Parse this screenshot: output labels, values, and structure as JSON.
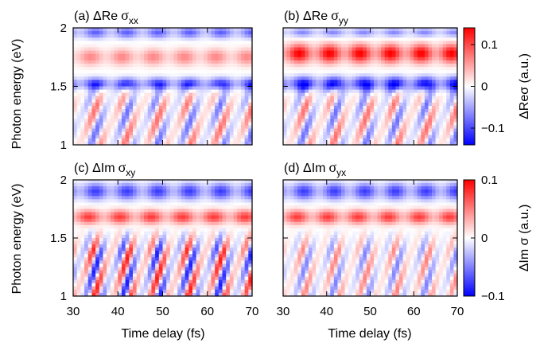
{
  "chart_data": {
    "type": "heatmap",
    "xlabel": "Time delay (fs)",
    "ylabel": "Photon energy (eV)",
    "xlim": [
      30,
      70
    ],
    "ylim": [
      1,
      2
    ],
    "x_ticks": [
      "30",
      "40",
      "50",
      "60",
      "70"
    ],
    "y_ticks": [
      "1",
      "1.5",
      "2"
    ],
    "colormap": [
      "#0000ff",
      "#ffffff",
      "#ff0000"
    ],
    "colorbars": [
      {
        "label": "ΔReσ (a.u.)",
        "ticks": [
          "0.1",
          "0",
          "−0.1"
        ],
        "tick_values": [
          0.1,
          0,
          -0.1
        ],
        "range": [
          -0.14,
          0.14
        ]
      },
      {
        "label": "ΔIm σ (a.u.)",
        "ticks": [
          "0.1",
          "0",
          "−0.1"
        ],
        "tick_values": [
          0.1,
          0,
          -0.1
        ],
        "range": [
          -0.1,
          0.1
        ]
      }
    ],
    "panels": [
      {
        "tag": "(a)",
        "quantity": "ΔRe",
        "symbol": "σ",
        "subscript": "xx",
        "pattern": {
          "bands": [
            {
              "center": 1.96,
              "width": 0.05,
              "amplitude": -0.08,
              "phase": 0.0
            },
            {
              "center": 1.75,
              "width": 0.07,
              "amplitude": 0.06,
              "phase": 1.0
            },
            {
              "center": 1.52,
              "width": 0.05,
              "amplitude": -0.11,
              "phase": 0.0
            }
          ],
          "stripes": {
            "below": 1.45,
            "amplitude": 0.08,
            "period_fs": 5.0,
            "slope_fs_per_eV": 12.0
          }
        }
      },
      {
        "tag": "(b)",
        "quantity": "ΔRe",
        "symbol": "σ",
        "subscript": "yy",
        "pattern": {
          "bands": [
            {
              "center": 1.96,
              "width": 0.04,
              "amplitude": -0.06,
              "phase": 0.5
            },
            {
              "center": 1.78,
              "width": 0.08,
              "amplitude": 0.13,
              "phase": 1.2
            },
            {
              "center": 1.52,
              "width": 0.06,
              "amplitude": -0.13,
              "phase": 0.3
            }
          ],
          "stripes": {
            "below": 1.45,
            "amplitude": 0.08,
            "period_fs": 5.0,
            "slope_fs_per_eV": 12.0
          }
        }
      },
      {
        "tag": "(c)",
        "quantity": "ΔIm",
        "symbol": "σ",
        "subscript": "xy",
        "pattern": {
          "bands": [
            {
              "center": 1.9,
              "width": 0.07,
              "amplitude": -0.07,
              "phase": 0.0
            },
            {
              "center": 1.68,
              "width": 0.06,
              "amplitude": 0.07,
              "phase": 1.4
            }
          ],
          "stripes": {
            "below": 1.5,
            "amplitude": 0.09,
            "period_fs": 4.2,
            "slope_fs_per_eV": 10.0
          }
        }
      },
      {
        "tag": "(d)",
        "quantity": "ΔIm",
        "symbol": "σ",
        "subscript": "yx",
        "pattern": {
          "bands": [
            {
              "center": 1.9,
              "width": 0.07,
              "amplitude": -0.07,
              "phase": 0.2
            },
            {
              "center": 1.68,
              "width": 0.06,
              "amplitude": 0.07,
              "phase": 1.6
            }
          ],
          "stripes": {
            "below": 1.5,
            "amplitude": 0.05,
            "period_fs": 4.2,
            "slope_fs_per_eV": 10.0
          }
        }
      }
    ]
  }
}
